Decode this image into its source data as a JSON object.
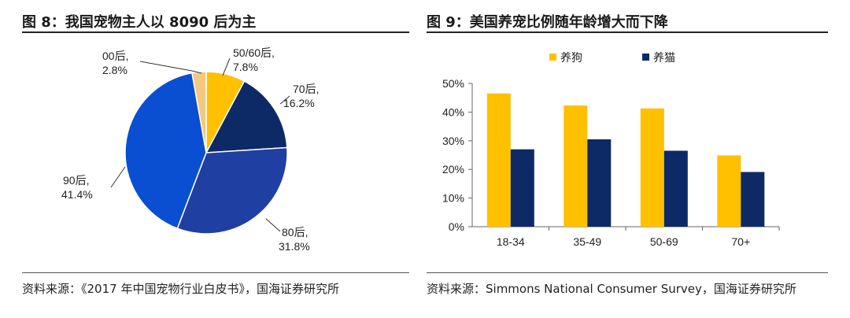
{
  "left": {
    "title": "图 8：我国宠物主人以 8090 后为主",
    "source": "资料来源：《2017 年中国宠物行业白皮书》，国海证券研究所"
  },
  "right": {
    "title": "图 9：美国养宠比例随年龄增大而下降",
    "source": "资料来源：Simmons National Consumer Survey，国海证券研究所"
  },
  "chart_data": [
    {
      "type": "pie",
      "title": "图 8：我国宠物主人以 8090 后为主",
      "slices": [
        {
          "label": "50/60后",
          "value": 7.8,
          "value_label": "7.8%",
          "color": "#FFC000"
        },
        {
          "label": "70后",
          "value": 16.2,
          "value_label": "16.2%",
          "color": "#0D2A66"
        },
        {
          "label": "80后",
          "value": 31.8,
          "value_label": "31.8%",
          "color": "#1F3FA3"
        },
        {
          "label": "90后",
          "value": 41.4,
          "value_label": "41.4%",
          "color": "#0A4FD1"
        },
        {
          "label": "00后",
          "value": 2.8,
          "value_label": "2.8%",
          "color": "#F5C880"
        }
      ]
    },
    {
      "type": "bar",
      "title": "图 9：美国养宠比例随年龄增大而下降",
      "categories": [
        "18-34",
        "35-49",
        "50-69",
        "70+"
      ],
      "series": [
        {
          "name": "养狗",
          "values": [
            46.5,
            42.3,
            41.3,
            24.9
          ],
          "color": "#FFC000"
        },
        {
          "name": "养猫",
          "values": [
            27.0,
            30.5,
            26.5,
            19.1
          ],
          "color": "#0D2A66"
        }
      ],
      "ylim": [
        0,
        50
      ],
      "yticks": [
        0,
        10,
        20,
        30,
        40,
        50
      ],
      "ytick_labels": [
        "0%",
        "10%",
        "20%",
        "30%",
        "40%",
        "50%"
      ],
      "legend_position": "top"
    }
  ]
}
